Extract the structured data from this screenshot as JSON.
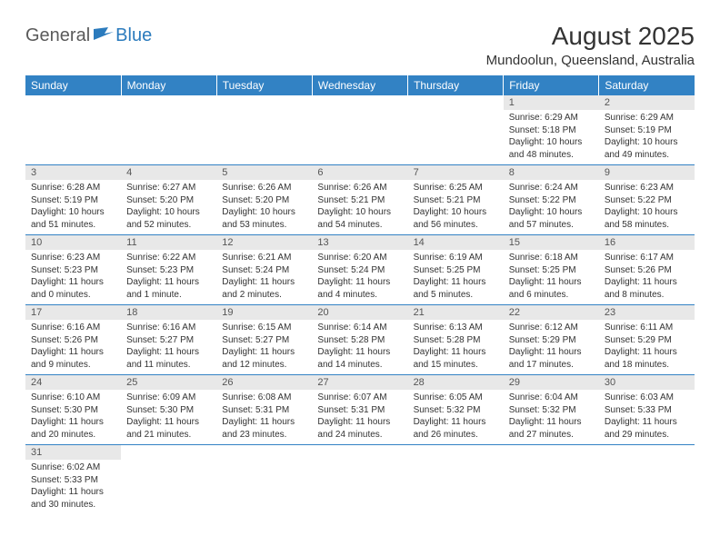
{
  "brand": {
    "general": "General",
    "blue": "Blue"
  },
  "title": "August 2025",
  "location": "Mundoolun, Queensland, Australia",
  "colors": {
    "header_bg": "#3282c4",
    "header_text": "#ffffff",
    "daynum_bg": "#e8e8e8",
    "row_border": "#3282c4",
    "text": "#333333",
    "logo_gray": "#5a5a5a",
    "logo_blue": "#2b7bbd"
  },
  "typography": {
    "title_fontsize": 28,
    "location_fontsize": 15,
    "dayhead_fontsize": 12,
    "daynum_fontsize": 11,
    "cell_fontsize": 10
  },
  "day_headers": [
    "Sunday",
    "Monday",
    "Tuesday",
    "Wednesday",
    "Thursday",
    "Friday",
    "Saturday"
  ],
  "weeks": [
    [
      null,
      null,
      null,
      null,
      null,
      {
        "n": "1",
        "sr": "Sunrise: 6:29 AM",
        "ss": "Sunset: 5:18 PM",
        "dl1": "Daylight: 10 hours",
        "dl2": "and 48 minutes."
      },
      {
        "n": "2",
        "sr": "Sunrise: 6:29 AM",
        "ss": "Sunset: 5:19 PM",
        "dl1": "Daylight: 10 hours",
        "dl2": "and 49 minutes."
      }
    ],
    [
      {
        "n": "3",
        "sr": "Sunrise: 6:28 AM",
        "ss": "Sunset: 5:19 PM",
        "dl1": "Daylight: 10 hours",
        "dl2": "and 51 minutes."
      },
      {
        "n": "4",
        "sr": "Sunrise: 6:27 AM",
        "ss": "Sunset: 5:20 PM",
        "dl1": "Daylight: 10 hours",
        "dl2": "and 52 minutes."
      },
      {
        "n": "5",
        "sr": "Sunrise: 6:26 AM",
        "ss": "Sunset: 5:20 PM",
        "dl1": "Daylight: 10 hours",
        "dl2": "and 53 minutes."
      },
      {
        "n": "6",
        "sr": "Sunrise: 6:26 AM",
        "ss": "Sunset: 5:21 PM",
        "dl1": "Daylight: 10 hours",
        "dl2": "and 54 minutes."
      },
      {
        "n": "7",
        "sr": "Sunrise: 6:25 AM",
        "ss": "Sunset: 5:21 PM",
        "dl1": "Daylight: 10 hours",
        "dl2": "and 56 minutes."
      },
      {
        "n": "8",
        "sr": "Sunrise: 6:24 AM",
        "ss": "Sunset: 5:22 PM",
        "dl1": "Daylight: 10 hours",
        "dl2": "and 57 minutes."
      },
      {
        "n": "9",
        "sr": "Sunrise: 6:23 AM",
        "ss": "Sunset: 5:22 PM",
        "dl1": "Daylight: 10 hours",
        "dl2": "and 58 minutes."
      }
    ],
    [
      {
        "n": "10",
        "sr": "Sunrise: 6:23 AM",
        "ss": "Sunset: 5:23 PM",
        "dl1": "Daylight: 11 hours",
        "dl2": "and 0 minutes."
      },
      {
        "n": "11",
        "sr": "Sunrise: 6:22 AM",
        "ss": "Sunset: 5:23 PM",
        "dl1": "Daylight: 11 hours",
        "dl2": "and 1 minute."
      },
      {
        "n": "12",
        "sr": "Sunrise: 6:21 AM",
        "ss": "Sunset: 5:24 PM",
        "dl1": "Daylight: 11 hours",
        "dl2": "and 2 minutes."
      },
      {
        "n": "13",
        "sr": "Sunrise: 6:20 AM",
        "ss": "Sunset: 5:24 PM",
        "dl1": "Daylight: 11 hours",
        "dl2": "and 4 minutes."
      },
      {
        "n": "14",
        "sr": "Sunrise: 6:19 AM",
        "ss": "Sunset: 5:25 PM",
        "dl1": "Daylight: 11 hours",
        "dl2": "and 5 minutes."
      },
      {
        "n": "15",
        "sr": "Sunrise: 6:18 AM",
        "ss": "Sunset: 5:25 PM",
        "dl1": "Daylight: 11 hours",
        "dl2": "and 6 minutes."
      },
      {
        "n": "16",
        "sr": "Sunrise: 6:17 AM",
        "ss": "Sunset: 5:26 PM",
        "dl1": "Daylight: 11 hours",
        "dl2": "and 8 minutes."
      }
    ],
    [
      {
        "n": "17",
        "sr": "Sunrise: 6:16 AM",
        "ss": "Sunset: 5:26 PM",
        "dl1": "Daylight: 11 hours",
        "dl2": "and 9 minutes."
      },
      {
        "n": "18",
        "sr": "Sunrise: 6:16 AM",
        "ss": "Sunset: 5:27 PM",
        "dl1": "Daylight: 11 hours",
        "dl2": "and 11 minutes."
      },
      {
        "n": "19",
        "sr": "Sunrise: 6:15 AM",
        "ss": "Sunset: 5:27 PM",
        "dl1": "Daylight: 11 hours",
        "dl2": "and 12 minutes."
      },
      {
        "n": "20",
        "sr": "Sunrise: 6:14 AM",
        "ss": "Sunset: 5:28 PM",
        "dl1": "Daylight: 11 hours",
        "dl2": "and 14 minutes."
      },
      {
        "n": "21",
        "sr": "Sunrise: 6:13 AM",
        "ss": "Sunset: 5:28 PM",
        "dl1": "Daylight: 11 hours",
        "dl2": "and 15 minutes."
      },
      {
        "n": "22",
        "sr": "Sunrise: 6:12 AM",
        "ss": "Sunset: 5:29 PM",
        "dl1": "Daylight: 11 hours",
        "dl2": "and 17 minutes."
      },
      {
        "n": "23",
        "sr": "Sunrise: 6:11 AM",
        "ss": "Sunset: 5:29 PM",
        "dl1": "Daylight: 11 hours",
        "dl2": "and 18 minutes."
      }
    ],
    [
      {
        "n": "24",
        "sr": "Sunrise: 6:10 AM",
        "ss": "Sunset: 5:30 PM",
        "dl1": "Daylight: 11 hours",
        "dl2": "and 20 minutes."
      },
      {
        "n": "25",
        "sr": "Sunrise: 6:09 AM",
        "ss": "Sunset: 5:30 PM",
        "dl1": "Daylight: 11 hours",
        "dl2": "and 21 minutes."
      },
      {
        "n": "26",
        "sr": "Sunrise: 6:08 AM",
        "ss": "Sunset: 5:31 PM",
        "dl1": "Daylight: 11 hours",
        "dl2": "and 23 minutes."
      },
      {
        "n": "27",
        "sr": "Sunrise: 6:07 AM",
        "ss": "Sunset: 5:31 PM",
        "dl1": "Daylight: 11 hours",
        "dl2": "and 24 minutes."
      },
      {
        "n": "28",
        "sr": "Sunrise: 6:05 AM",
        "ss": "Sunset: 5:32 PM",
        "dl1": "Daylight: 11 hours",
        "dl2": "and 26 minutes."
      },
      {
        "n": "29",
        "sr": "Sunrise: 6:04 AM",
        "ss": "Sunset: 5:32 PM",
        "dl1": "Daylight: 11 hours",
        "dl2": "and 27 minutes."
      },
      {
        "n": "30",
        "sr": "Sunrise: 6:03 AM",
        "ss": "Sunset: 5:33 PM",
        "dl1": "Daylight: 11 hours",
        "dl2": "and 29 minutes."
      }
    ],
    [
      {
        "n": "31",
        "sr": "Sunrise: 6:02 AM",
        "ss": "Sunset: 5:33 PM",
        "dl1": "Daylight: 11 hours",
        "dl2": "and 30 minutes."
      },
      null,
      null,
      null,
      null,
      null,
      null
    ]
  ]
}
